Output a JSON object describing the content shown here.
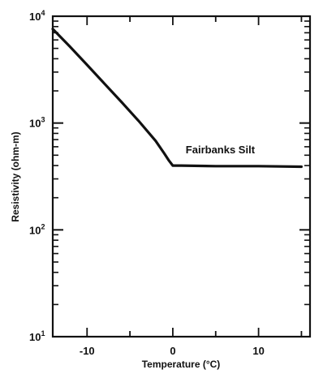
{
  "chart_data": {
    "type": "line",
    "xlabel": "Temperature (°C)",
    "ylabel": "Resistivity (ohm-m)",
    "xlim": [
      -14,
      16
    ],
    "ylim": [
      10,
      10000
    ],
    "y_scale": "log",
    "grid": false,
    "x_ticks": [
      {
        "value": -10,
        "label": "-10"
      },
      {
        "value": 0,
        "label": "0"
      },
      {
        "value": 10,
        "label": "10"
      }
    ],
    "y_ticks": [
      {
        "value": 10,
        "base": "10",
        "exp": "1"
      },
      {
        "value": 100,
        "base": "10",
        "exp": "2"
      },
      {
        "value": 1000,
        "base": "10",
        "exp": "3"
      },
      {
        "value": 10000,
        "base": "10",
        "exp": "4"
      }
    ],
    "series": [
      {
        "name": "Fairbanks Silt",
        "x": [
          -14,
          -12,
          -10,
          -8,
          -6,
          -4,
          -2,
          -1,
          -0.5,
          0,
          1,
          5,
          10,
          15
        ],
        "y": [
          7600,
          5200,
          3500,
          2350,
          1580,
          1050,
          680,
          520,
          450,
          400,
          400,
          395,
          395,
          390
        ]
      }
    ],
    "annotations": [
      {
        "text": "Fairbanks Silt",
        "x": 1.5,
        "y": 520
      }
    ],
    "line_color": "#111111"
  }
}
